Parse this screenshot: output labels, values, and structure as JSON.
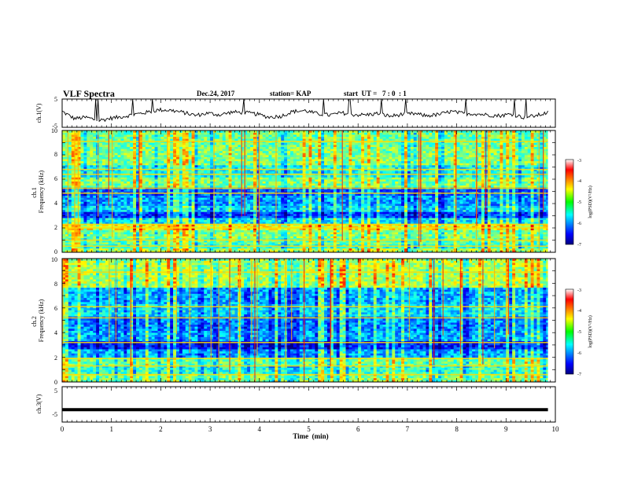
{
  "header": {
    "title": "VLF Spectra",
    "date": "Dec.24, 2017",
    "station": "station= KAP",
    "start_ut": "start  UT =   7 : 0  : 1"
  },
  "chart_data": [
    {
      "type": "line",
      "panel": "ch1-waveform",
      "ylabel": "ch.1(V)",
      "ylim": [
        -5,
        5
      ],
      "yticks": [
        "5",
        "-5"
      ],
      "x_range_min": [
        0,
        9.85
      ],
      "series": [
        {
          "values": [
            0.6,
            -1.9,
            -1.5,
            -2.6,
            -1.8,
            -1.2,
            -0.4,
            0.3,
            1.2,
            1.0,
            0.2,
            -0.8,
            0.0,
            -0.6,
            0.4,
            0.2,
            -0.3,
            -1.4,
            -1.1,
            0.6,
            0.9,
            -0.2,
            -0.7,
            0.1,
            -0.5,
            -0.6,
            -0.1,
            -1.1,
            -0.4,
            -0.2,
            -0.9,
            -0.5,
            0.6,
            -0.1,
            -0.2,
            -0.6,
            -0.9,
            -0.3,
            -1.5,
            -0.9,
            0.2
          ]
        }
      ]
    },
    {
      "type": "heatmap",
      "panel": "ch1-spectrogram",
      "ylabel": "ch.1\nFrequency (kHz)",
      "ylim": [
        0,
        10
      ],
      "yticks": [
        "0",
        "2",
        "4",
        "6",
        "8",
        "10"
      ],
      "colorbar": {
        "label": "log(PSD)(V²/Hz)",
        "range": [
          -7,
          -3
        ],
        "ticks": [
          "-3",
          "-4",
          "-5",
          "-6",
          "-7"
        ]
      },
      "bands_khz": [
        {
          "from": 0.0,
          "to": 0.35,
          "level": 0.55
        },
        {
          "from": 0.35,
          "to": 0.75,
          "level": 0.42
        },
        {
          "from": 0.75,
          "to": 1.2,
          "level": 0.46
        },
        {
          "from": 1.2,
          "to": 1.9,
          "level": 0.5
        },
        {
          "from": 1.9,
          "to": 2.35,
          "level": 0.62
        },
        {
          "from": 2.35,
          "to": 2.9,
          "level": 0.36
        },
        {
          "from": 2.9,
          "to": 3.4,
          "level": 0.18
        },
        {
          "from": 3.4,
          "to": 3.9,
          "level": 0.34
        },
        {
          "from": 3.9,
          "to": 4.7,
          "level": 0.28
        },
        {
          "from": 4.7,
          "to": 5.4,
          "level": 0.22
        },
        {
          "from": 5.4,
          "to": 6.2,
          "level": 0.5
        },
        {
          "from": 6.2,
          "to": 7.1,
          "level": 0.38
        },
        {
          "from": 7.1,
          "to": 8.6,
          "level": 0.5
        },
        {
          "from": 8.6,
          "to": 10.0,
          "level": 0.48
        }
      ],
      "lines_khz": [
        0.5,
        1.0,
        2.0,
        2.3,
        4.85,
        5.25,
        6.4,
        6.8,
        9.1
      ]
    },
    {
      "type": "heatmap",
      "panel": "ch2-spectrogram",
      "ylabel": "ch.2\nFrequency (kHz)",
      "ylim": [
        0,
        10
      ],
      "yticks": [
        "0",
        "2",
        "4",
        "6",
        "8",
        "10"
      ],
      "colorbar": {
        "label": "log(PSD)(V²/Hz)",
        "range": [
          -7,
          -3
        ],
        "ticks": [
          "-3",
          "-4",
          "-5",
          "-6",
          "-7"
        ]
      },
      "bands_khz": [
        {
          "from": 0.0,
          "to": 0.6,
          "level": 0.5
        },
        {
          "from": 0.6,
          "to": 1.4,
          "level": 0.42
        },
        {
          "from": 1.4,
          "to": 2.0,
          "level": 0.48
        },
        {
          "from": 2.0,
          "to": 2.7,
          "level": 0.3
        },
        {
          "from": 2.7,
          "to": 3.3,
          "level": 0.15
        },
        {
          "from": 3.3,
          "to": 4.2,
          "level": 0.3
        },
        {
          "from": 4.2,
          "to": 5.4,
          "level": 0.26
        },
        {
          "from": 5.4,
          "to": 6.3,
          "level": 0.36
        },
        {
          "from": 6.3,
          "to": 7.6,
          "level": 0.3
        },
        {
          "from": 7.6,
          "to": 10.0,
          "level": 0.55
        }
      ],
      "lines_khz": [
        0.6,
        1.3,
        1.9,
        3.2,
        5.2,
        6.1,
        8.9
      ]
    },
    {
      "type": "line",
      "panel": "ch3-waveform",
      "ylabel": "ch.3(V)",
      "ylim": [
        -5,
        5
      ],
      "yticks": [
        "5",
        "0",
        "-5"
      ],
      "series": [
        {
          "values": [
            -1.5,
            -1.5
          ]
        }
      ]
    }
  ],
  "time_axis": {
    "xlabel": "Time  (min)",
    "xlim": [
      0,
      10
    ],
    "ticks": [
      "0",
      "1",
      "2",
      "3",
      "4",
      "5",
      "6",
      "7",
      "8",
      "9",
      "10"
    ]
  }
}
